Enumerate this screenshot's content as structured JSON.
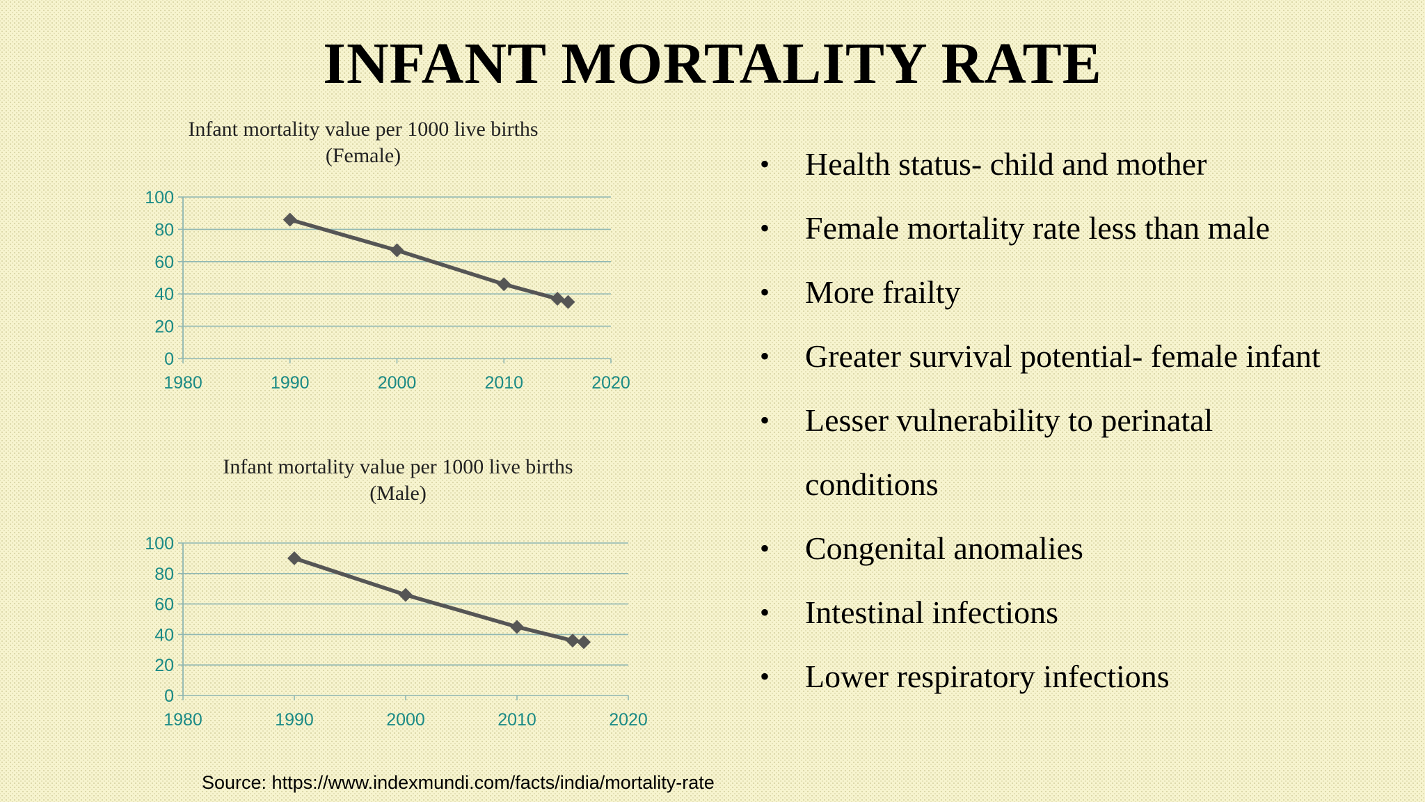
{
  "slide": {
    "title": "INFANT MORTALITY RATE"
  },
  "chart_data": [
    {
      "type": "line",
      "title": "Infant mortality value per 1000 live births (Female)",
      "title_lines": [
        "Infant mortality value per 1000 live births",
        "(Female)"
      ],
      "x": [
        1990,
        2000,
        2010,
        2015,
        2016
      ],
      "values": [
        86,
        67,
        46,
        37,
        35
      ],
      "xlim": [
        1980,
        2020
      ],
      "ylim": [
        0,
        100
      ],
      "x_ticks": [
        1980,
        1990,
        2000,
        2010,
        2020
      ],
      "y_ticks": [
        0,
        20,
        40,
        60,
        80,
        100
      ],
      "xlabel": "",
      "ylabel": "",
      "grid": true,
      "legend": "none",
      "colors": {
        "line": "#555555",
        "grid": "#8fb7b3",
        "ticks": "#1a8a85"
      }
    },
    {
      "type": "line",
      "title": "Infant mortality value per 1000 live births (Male)",
      "title_lines": [
        "Infant mortality value per 1000 live births",
        "(Male)"
      ],
      "x": [
        1990,
        2000,
        2010,
        2015,
        2016
      ],
      "values": [
        90,
        66,
        45,
        36,
        35
      ],
      "xlim": [
        1980,
        2020
      ],
      "ylim": [
        0,
        100
      ],
      "x_ticks": [
        1980,
        1990,
        2000,
        2010,
        2020
      ],
      "y_ticks": [
        0,
        20,
        40,
        60,
        80,
        100
      ],
      "xlabel": "",
      "ylabel": "",
      "grid": true,
      "legend": "none",
      "colors": {
        "line": "#555555",
        "grid": "#8fb7b3",
        "ticks": "#1a8a85"
      }
    }
  ],
  "bullets": {
    "items": [
      "Health status- child and mother",
      "Female mortality rate less than male",
      "More frailty",
      "Greater survival potential- female infant",
      "Lesser vulnerability to perinatal conditions",
      "Congenital anomalies",
      "Intestinal infections",
      "Lower respiratory infections"
    ]
  },
  "source": {
    "text": "Source: https://www.indexmundi.com/facts/india/mortality-rate"
  }
}
